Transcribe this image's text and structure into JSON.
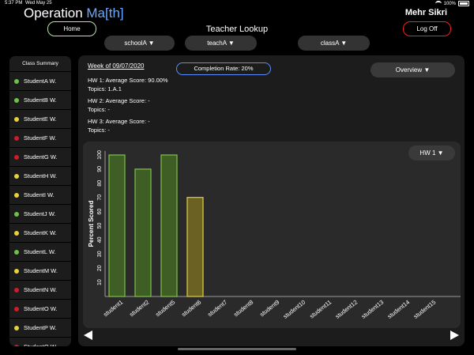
{
  "status": {
    "time": "5:37 PM",
    "date": "Wed May 25",
    "battery": "100%"
  },
  "header": {
    "app_title_prefix": "Operation ",
    "app_title_brand": "Ma[th]",
    "user_name": "Mehr Sikri",
    "page_title": "Teacher Lookup",
    "home_label": "Home",
    "logoff_label": "Log Off"
  },
  "filters": {
    "school": "schoolA ▼",
    "teacher": "teachA ▼",
    "class": "classA ▼"
  },
  "sidebar": {
    "title": "Class Summary",
    "items": [
      {
        "label": "StudentA W.",
        "status": "green"
      },
      {
        "label": "StudentB W.",
        "status": "green"
      },
      {
        "label": "StudentE W.",
        "status": "yellow"
      },
      {
        "label": "StudentF W.",
        "status": "red"
      },
      {
        "label": "StudentG W.",
        "status": "red"
      },
      {
        "label": "StudentH W.",
        "status": "yellow"
      },
      {
        "label": "StudentI W.",
        "status": "yellow"
      },
      {
        "label": "StudentJ W.",
        "status": "green"
      },
      {
        "label": "StudentK W.",
        "status": "yellow"
      },
      {
        "label": "StudentL W.",
        "status": "green"
      },
      {
        "label": "StudentM W.",
        "status": "yellow"
      },
      {
        "label": "StudentN W.",
        "status": "red"
      },
      {
        "label": "StudentO W.",
        "status": "red"
      },
      {
        "label": "StudentP W.",
        "status": "yellow"
      },
      {
        "label": "StudentQ W.",
        "status": "red"
      }
    ]
  },
  "main": {
    "week_label": "Week of 09/07/2020",
    "completion_label": "Completion Rate: 20%",
    "overview_label": "Overview ▼",
    "hw_select": "HW 1 ▼",
    "homeworks": [
      {
        "score": "HW 1: Average Score: 90.00%",
        "topics": "Topics: 1.A.1"
      },
      {
        "score": "HW 2: Average Score: -",
        "topics": "Topics: -"
      },
      {
        "score": "HW 3: Average Score: -",
        "topics": "Topics: -"
      }
    ]
  },
  "colors": {
    "green": "#6cc24a",
    "yellow": "#e8d23a",
    "red": "#d01c2a",
    "brand": "#6aa8ff",
    "bar_green_fill": "#3f5e25",
    "bar_green_stroke": "#7fc24a",
    "bar_yellow_fill": "#6a6122",
    "bar_yellow_stroke": "#e0d040"
  },
  "chart_data": {
    "type": "bar",
    "ylabel": "Percent Scored",
    "ylim": [
      0,
      100
    ],
    "yticks": [
      10,
      20,
      30,
      40,
      50,
      60,
      70,
      80,
      90,
      100
    ],
    "categories": [
      "student1",
      "student2",
      "student5",
      "student6",
      "student7",
      "student8",
      "student9",
      "student10",
      "student11",
      "student12",
      "student13",
      "student14",
      "student15"
    ],
    "values": [
      100,
      90,
      100,
      70,
      null,
      null,
      null,
      null,
      null,
      null,
      null,
      null,
      null
    ],
    "bar_colors": [
      "green",
      "green",
      "green",
      "yellow",
      null,
      null,
      null,
      null,
      null,
      null,
      null,
      null,
      null
    ]
  }
}
